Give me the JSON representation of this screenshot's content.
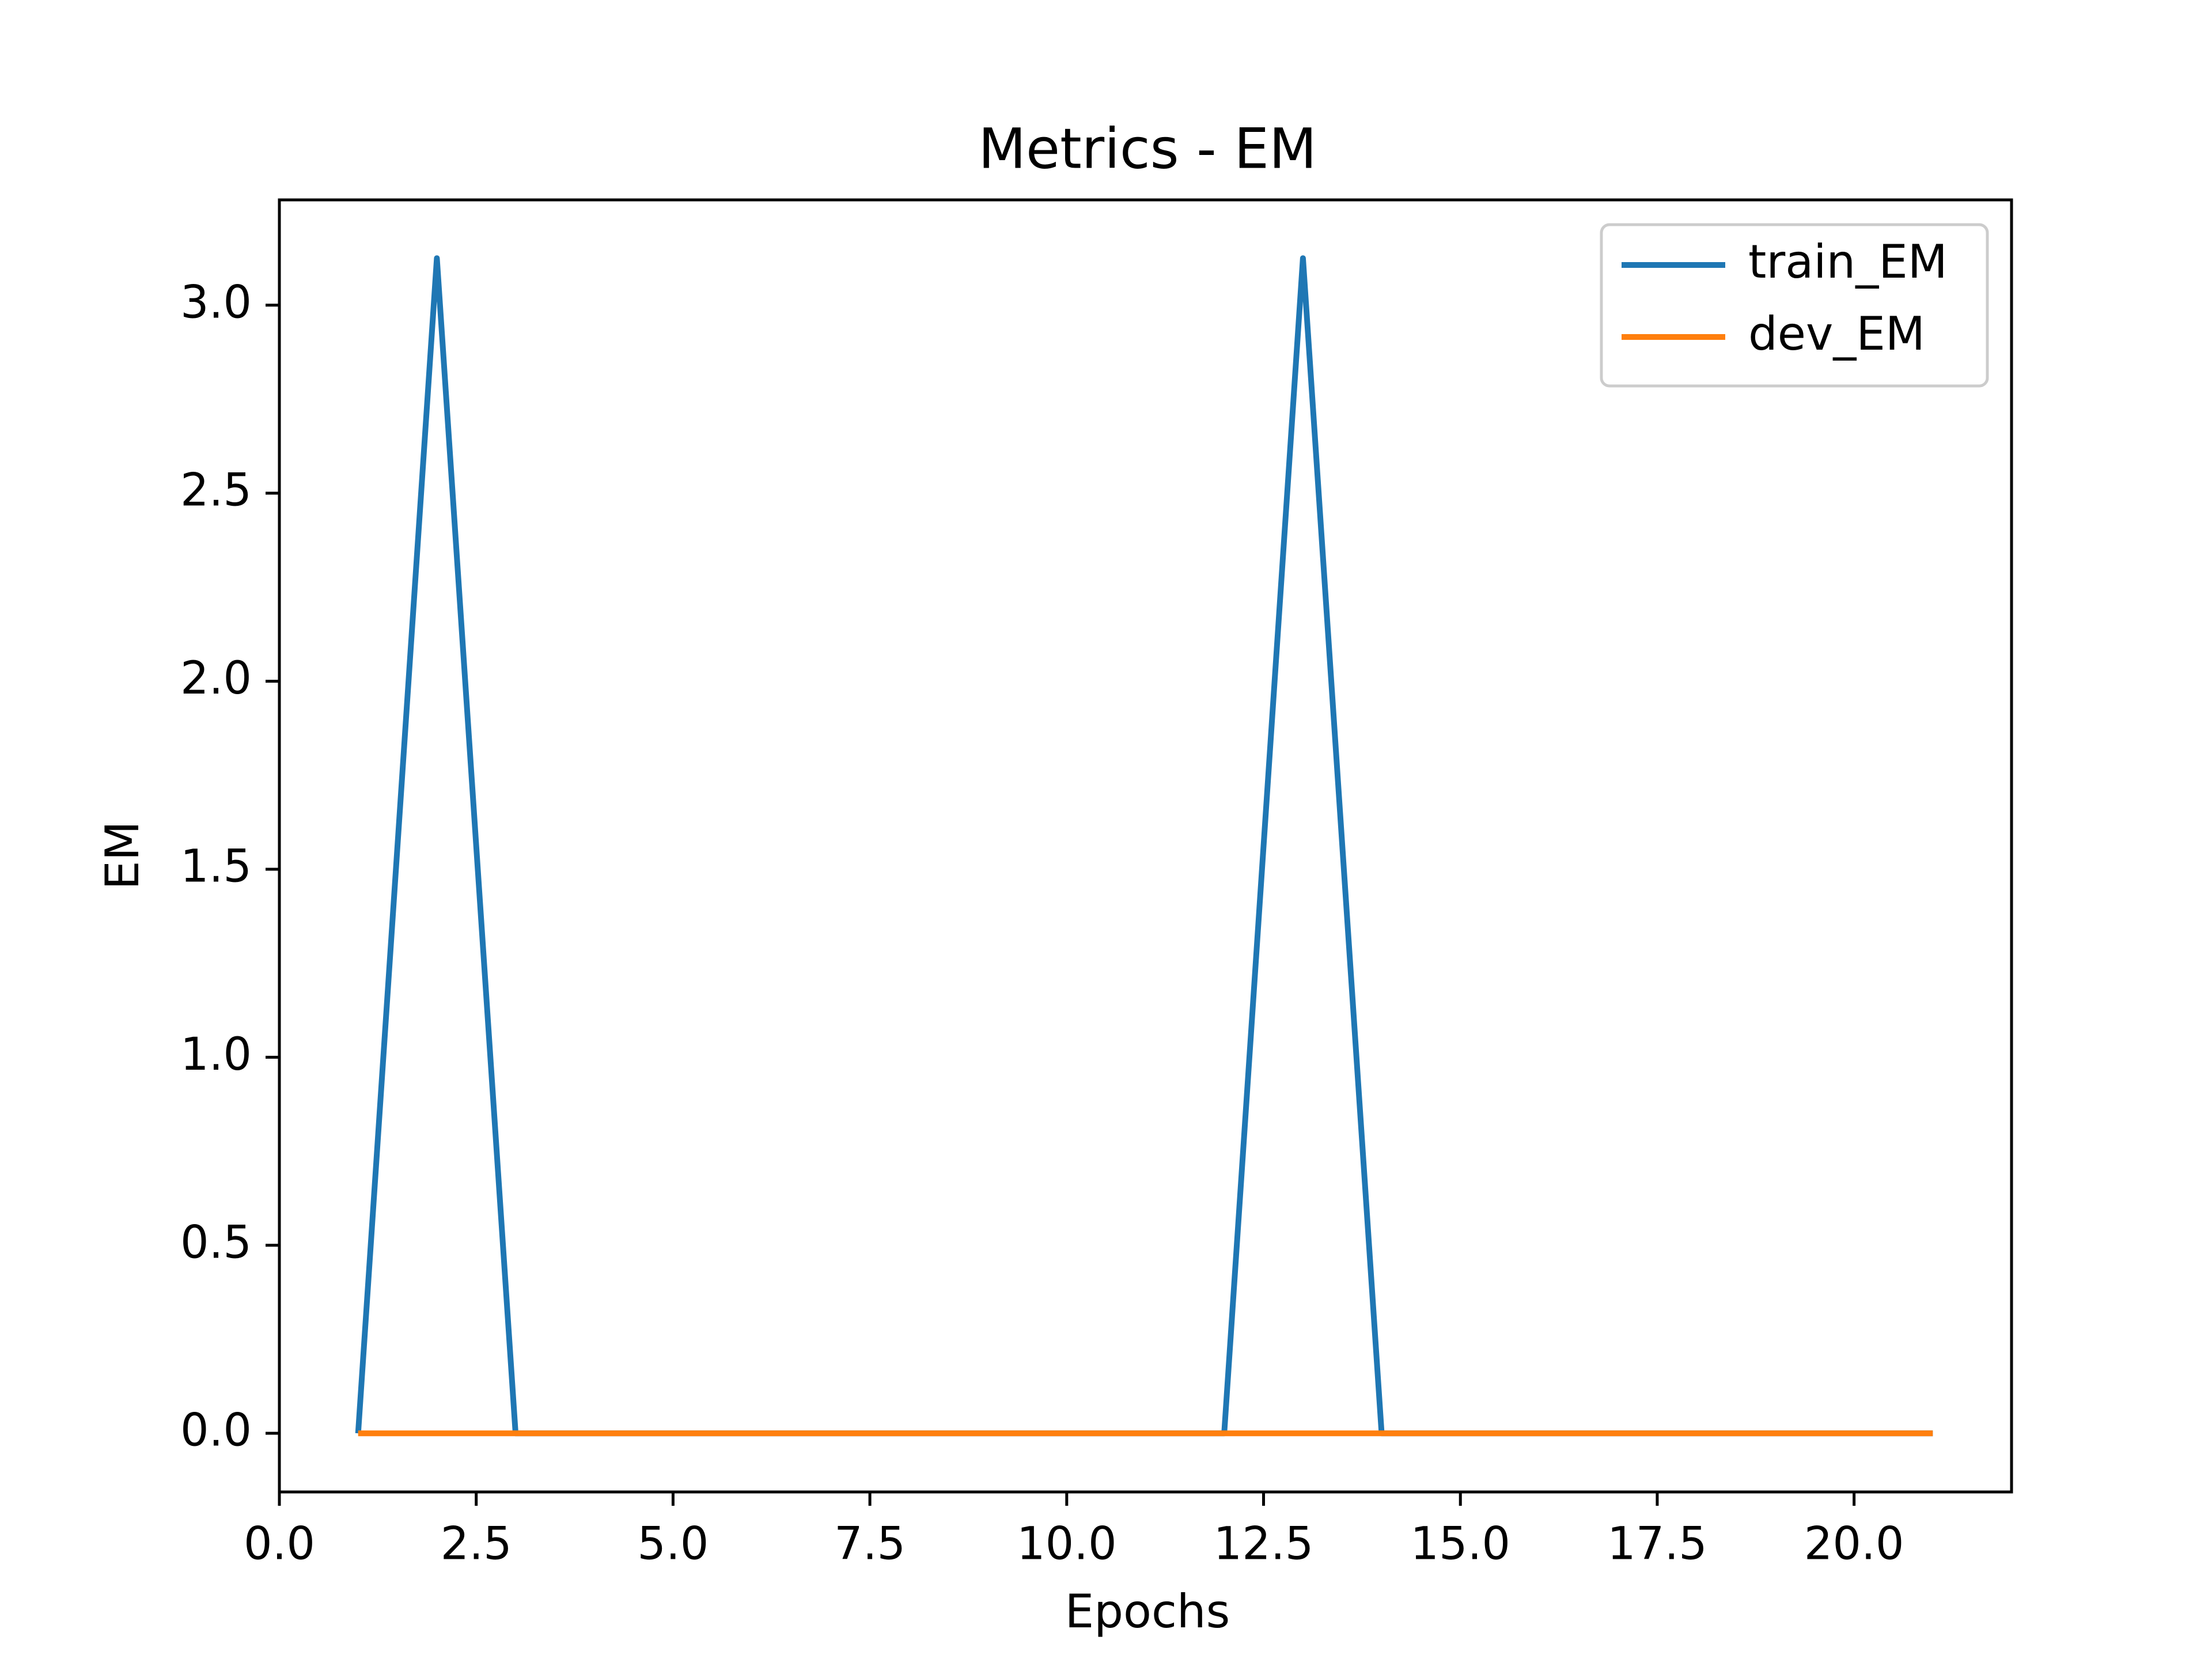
{
  "chart_data": {
    "type": "line",
    "title": "Metrics - EM",
    "xlabel": "Epochs",
    "ylabel": "EM",
    "xlim": [
      0,
      22
    ],
    "ylim": [
      -0.156,
      3.28
    ],
    "x_ticks": [
      {
        "value": 0.0,
        "label": "0.0"
      },
      {
        "value": 2.5,
        "label": "2.5"
      },
      {
        "value": 5.0,
        "label": "5.0"
      },
      {
        "value": 7.5,
        "label": "7.5"
      },
      {
        "value": 10.0,
        "label": "10.0"
      },
      {
        "value": 12.5,
        "label": "12.5"
      },
      {
        "value": 15.0,
        "label": "15.0"
      },
      {
        "value": 17.5,
        "label": "17.5"
      },
      {
        "value": 20.0,
        "label": "20.0"
      }
    ],
    "y_ticks": [
      {
        "value": 0.0,
        "label": "0.0"
      },
      {
        "value": 0.5,
        "label": "0.5"
      },
      {
        "value": 1.0,
        "label": "1.0"
      },
      {
        "value": 1.5,
        "label": "1.5"
      },
      {
        "value": 2.0,
        "label": "2.0"
      },
      {
        "value": 2.5,
        "label": "2.5"
      },
      {
        "value": 3.0,
        "label": "3.0"
      }
    ],
    "x": [
      1,
      2,
      3,
      4,
      5,
      6,
      7,
      8,
      9,
      10,
      11,
      12,
      13,
      14,
      15,
      16,
      17,
      18,
      19,
      20,
      21
    ],
    "series": [
      {
        "name": "train_EM",
        "color": "#1f77b4",
        "values": [
          0,
          3.125,
          0,
          0,
          0,
          0,
          0,
          0,
          0,
          0,
          0,
          0,
          3.125,
          0,
          0,
          0,
          0,
          0,
          0,
          0,
          0
        ]
      },
      {
        "name": "dev_EM",
        "color": "#ff7f0e",
        "values": [
          0,
          0,
          0,
          0,
          0,
          0,
          0,
          0,
          0,
          0,
          0,
          0,
          0,
          0,
          0,
          0,
          0,
          0,
          0,
          0,
          0
        ]
      }
    ],
    "grid": false,
    "legend_position": "upper-right"
  }
}
